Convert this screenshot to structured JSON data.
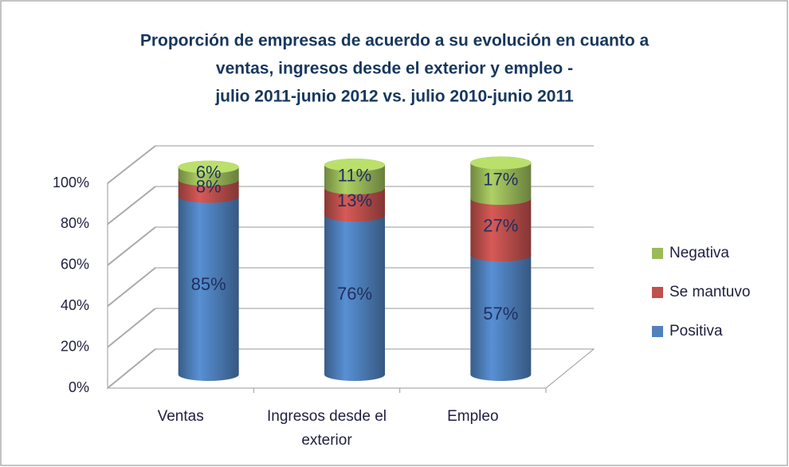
{
  "chart_data": {
    "type": "bar",
    "title": [
      "Proporción de empresas de acuerdo a su evolución en cuanto a",
      "ventas, ingresos desde el exterior y empleo -",
      "julio 2011-junio 2012  vs. julio 2010-junio 2011"
    ],
    "categories": [
      "Ventas",
      "Ingresos desde el exterior",
      "Empleo"
    ],
    "series": [
      {
        "name": "Positiva",
        "color": "#4f81bd",
        "values": [
          85,
          76,
          57
        ],
        "value_labels": [
          "85%",
          "76%",
          "57%"
        ]
      },
      {
        "name": "Se mantuvo",
        "color": "#c0504d",
        "values": [
          8,
          13,
          27
        ],
        "value_labels": [
          "8%",
          "13%",
          "27%"
        ]
      },
      {
        "name": "Negativa",
        "color": "#9bbb59",
        "values": [
          6,
          11,
          17
        ],
        "value_labels": [
          "6%",
          "11%",
          "17%"
        ]
      }
    ],
    "stacked": true,
    "ylim": [
      0,
      100
    ],
    "yticks": [
      {
        "value": 0,
        "label": "0%"
      },
      {
        "value": 20,
        "label": "20%"
      },
      {
        "value": 40,
        "label": "40%"
      },
      {
        "value": 60,
        "label": "60%"
      },
      {
        "value": 80,
        "label": "80%"
      },
      {
        "value": 100,
        "label": "100%"
      }
    ],
    "grid": true,
    "legend": "right"
  }
}
